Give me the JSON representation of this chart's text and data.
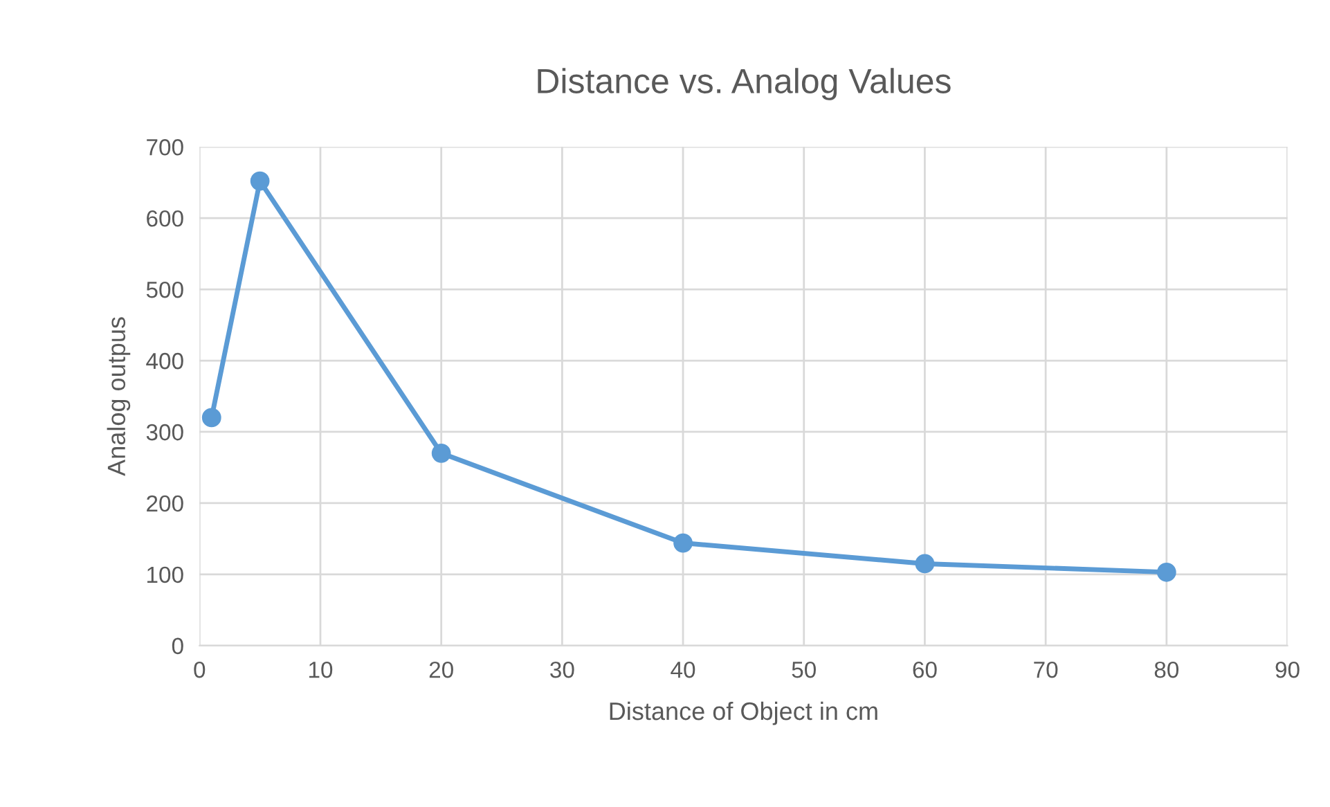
{
  "chart_data": {
    "type": "line",
    "title": "Distance vs. Analog Values",
    "xlabel": "Distance of Object in cm",
    "ylabel": "Analog outpus",
    "x": [
      1,
      5,
      20,
      40,
      60,
      80
    ],
    "series": [
      {
        "color": "#5b9bd5",
        "values": [
          320,
          652,
          270,
          144,
          115,
          103
        ]
      }
    ],
    "xlim": [
      0,
      90
    ],
    "xticks": [
      0,
      10,
      20,
      30,
      40,
      50,
      60,
      70,
      80,
      90
    ],
    "ylim": [
      0,
      700
    ],
    "yticks": [
      0,
      100,
      200,
      300,
      400,
      500,
      600,
      700
    ],
    "grid": true,
    "marker": "circle",
    "line_style": "solid",
    "legend": false
  }
}
